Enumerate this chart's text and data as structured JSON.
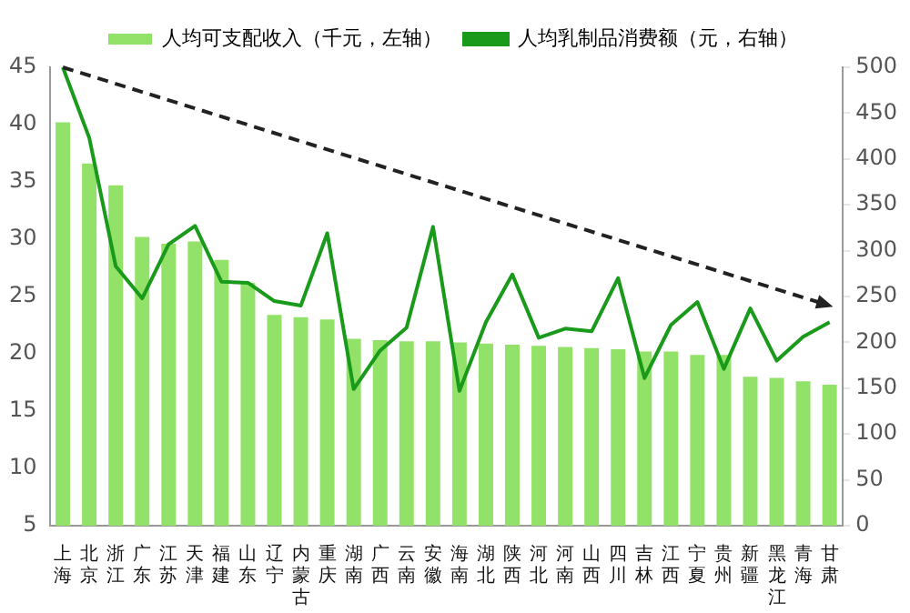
{
  "chart_data": {
    "type": "bar",
    "categories": [
      "上海",
      "北京",
      "浙江",
      "广东",
      "江苏",
      "天津",
      "福建",
      "山东",
      "辽宁",
      "内蒙古",
      "重庆",
      "湖南",
      "广西",
      "云南",
      "安徽",
      "海南",
      "湖北",
      "陕西",
      "河北",
      "河南",
      "山西",
      "四川",
      "吉林",
      "江西",
      "宁夏",
      "贵州",
      "新疆",
      "黑龙江",
      "青海",
      "甘肃"
    ],
    "series": [
      {
        "name": "人均可支配收入（千元，左轴）",
        "color": "#92e26a",
        "values": [
          40.2,
          36.6,
          34.7,
          30.2,
          29.6,
          29.8,
          28.2,
          26.2,
          23.4,
          23.2,
          23.0,
          21.3,
          21.2,
          21.1,
          21.1,
          21.0,
          20.9,
          20.8,
          20.7,
          20.6,
          20.5,
          20.4,
          20.2,
          20.2,
          19.9,
          19.9,
          18.0,
          17.9,
          17.6,
          17.3
        ]
      },
      {
        "name": "人均乳制品消费额（元，右轴）",
        "type": "line",
        "axis": "y2",
        "color": "#1a9a1a",
        "values": [
          500,
          423,
          283,
          248,
          307,
          327,
          266,
          265,
          245,
          240,
          319,
          149,
          191,
          216,
          326,
          147,
          222,
          274,
          205,
          215,
          212,
          270,
          161,
          219,
          244,
          171,
          237,
          180,
          206,
          222
        ]
      }
    ],
    "ylim": [
      5,
      45
    ],
    "yticks": [
      5,
      10,
      15,
      20,
      25,
      30,
      35,
      40,
      45
    ],
    "y2lim": [
      0,
      500
    ],
    "y2ticks": [
      0,
      50,
      100,
      150,
      200,
      250,
      300,
      350,
      400,
      450,
      500
    ],
    "grid": false,
    "legend": "top",
    "marker": "none"
  }
}
